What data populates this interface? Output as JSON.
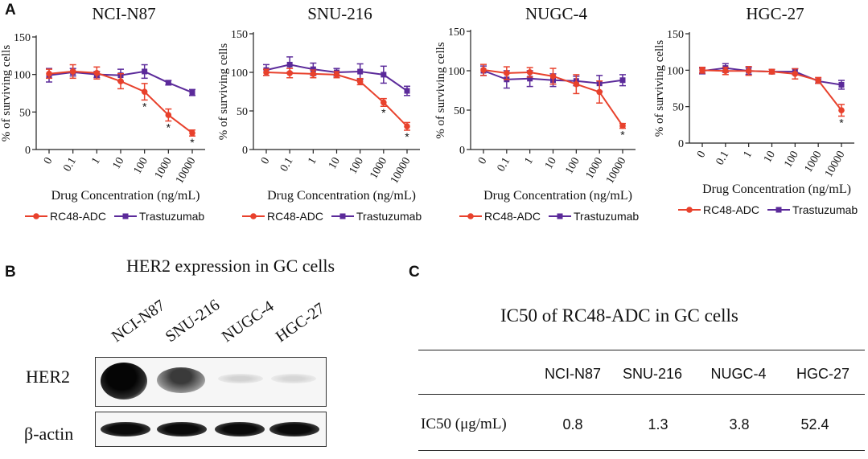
{
  "panel_labels": [
    "A",
    "B",
    "C"
  ],
  "chart_data": [
    {
      "type": "line",
      "title": "NCI-N87",
      "xlabel": "Drug Concentration (ng/mL)",
      "ylabel": "% of surviving cells",
      "categories": [
        "0",
        "0.1",
        "1",
        "10",
        "100",
        "1000",
        "10000"
      ],
      "ylim": [
        0,
        150
      ],
      "yticks": [
        0,
        50,
        100,
        150
      ],
      "series": [
        {
          "name": "RC48-ADC",
          "color": "#e8412c",
          "values": [
            101,
            104,
            102,
            91,
            77,
            46,
            22
          ],
          "errors": [
            6,
            9,
            8,
            10,
            11,
            8,
            4
          ]
        },
        {
          "name": "Trastuzumab",
          "color": "#5b2a9a",
          "values": [
            99,
            103,
            100,
            99,
            104,
            89,
            76
          ],
          "errors": [
            9,
            5,
            4,
            8,
            9,
            3,
            4
          ]
        }
      ],
      "annotations": [
        {
          "x": "100",
          "text": "*"
        },
        {
          "x": "1000",
          "text": "*"
        },
        {
          "x": "10000",
          "text": "*"
        }
      ]
    },
    {
      "type": "line",
      "title": "SNU-216",
      "xlabel": "Drug Concentration (ng/mL)",
      "ylabel": "% of surviving cells",
      "categories": [
        "0",
        "0.1",
        "1",
        "10",
        "100",
        "1000",
        "10000"
      ],
      "ylim": [
        0,
        150
      ],
      "yticks": [
        0,
        50,
        100,
        150
      ],
      "series": [
        {
          "name": "RC48-ADC",
          "color": "#e8412c",
          "values": [
            100,
            99,
            98,
            97,
            88,
            61,
            30
          ],
          "errors": [
            4,
            6,
            5,
            4,
            4,
            5,
            5
          ]
        },
        {
          "name": "Trastuzumab",
          "color": "#5b2a9a",
          "values": [
            103,
            110,
            104,
            100,
            101,
            97,
            76
          ],
          "errors": [
            7,
            10,
            8,
            5,
            10,
            11,
            6
          ]
        }
      ],
      "annotations": [
        {
          "x": "1000",
          "text": "*"
        },
        {
          "x": "10000",
          "text": "*"
        }
      ]
    },
    {
      "type": "line",
      "title": "NUGC-4",
      "xlabel": "Drug Concentration (ng/mL)",
      "ylabel": "% of surviving cells",
      "categories": [
        "0",
        "0.1",
        "1",
        "10",
        "100",
        "1000",
        "10000"
      ],
      "ylim": [
        0,
        150
      ],
      "yticks": [
        0,
        50,
        100,
        150
      ],
      "series": [
        {
          "name": "RC48-ADC",
          "color": "#e8412c",
          "values": [
            101,
            97,
            98,
            93,
            83,
            73,
            30
          ],
          "errors": [
            7,
            8,
            6,
            10,
            12,
            14,
            3
          ]
        },
        {
          "name": "Trastuzumab",
          "color": "#5b2a9a",
          "values": [
            100,
            89,
            90,
            88,
            87,
            84,
            88
          ],
          "errors": [
            6,
            11,
            10,
            8,
            6,
            10,
            7
          ]
        }
      ],
      "annotations": [
        {
          "x": "10000",
          "text": "*"
        }
      ]
    },
    {
      "type": "line",
      "title": "HGC-27",
      "xlabel": "Drug Concentration (ng/mL)",
      "ylabel": "% of surviving cells",
      "categories": [
        "0",
        "0.1",
        "1",
        "10",
        "100",
        "1000",
        "10000"
      ],
      "ylim": [
        0,
        150
      ],
      "yticks": [
        0,
        50,
        100,
        150
      ],
      "series": [
        {
          "name": "RC48-ADC",
          "color": "#e8412c",
          "values": [
            100,
            99,
            99,
            98,
            95,
            86,
            45
          ],
          "errors": [
            4,
            5,
            6,
            3,
            7,
            4,
            8
          ]
        },
        {
          "name": "Trastuzumab",
          "color": "#5b2a9a",
          "values": [
            99,
            103,
            99,
            98,
            98,
            85,
            80
          ],
          "errors": [
            4,
            6,
            5,
            3,
            4,
            3,
            6
          ]
        }
      ],
      "annotations": [
        {
          "x": "10000",
          "text": "*"
        }
      ]
    }
  ],
  "blot": {
    "title": "HER2 expression in GC cells",
    "lanes": [
      "NCI-N87",
      "SNU-216",
      "NUGC-4",
      "HGC-27"
    ],
    "rows": [
      "HER2",
      "β-actin"
    ]
  },
  "table": {
    "title": "IC50 of RC48-ADC in GC cells",
    "headers": [
      "NCI-N87",
      "SNU-216",
      "NUGC-4",
      "HGC-27"
    ],
    "row_label": "IC50 (μg/mL)",
    "values": [
      "0.8",
      "1.3",
      "3.8",
      "52.4"
    ]
  },
  "colors": {
    "rc48": "#e8412c",
    "trastuzumab": "#5b2a9a"
  }
}
